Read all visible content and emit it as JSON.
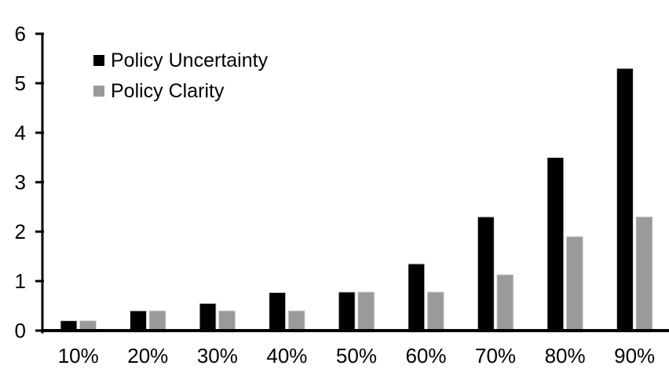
{
  "chart_data": {
    "type": "bar",
    "title": "",
    "xlabel": "",
    "ylabel": "",
    "categories": [
      "10%",
      "20%",
      "30%",
      "40%",
      "50%",
      "60%",
      "70%",
      "80%",
      "90%"
    ],
    "series": [
      {
        "name": "Policy Uncertainty",
        "color": "#000000",
        "values": [
          0.2,
          0.4,
          0.55,
          0.77,
          0.78,
          1.35,
          2.3,
          3.5,
          5.3
        ]
      },
      {
        "name": "Policy Clarity",
        "color": "#9a9a9a",
        "values": [
          0.2,
          0.4,
          0.4,
          0.4,
          0.78,
          0.78,
          1.13,
          1.9,
          2.3
        ]
      }
    ],
    "y_ticks": [
      0,
      1,
      2,
      3,
      4,
      5,
      6
    ],
    "ylim": [
      0,
      6
    ],
    "grid": false,
    "legend_position": "inside-top-left",
    "axis_color": "#000000",
    "bar_outline_color": "#d9d9d9"
  }
}
